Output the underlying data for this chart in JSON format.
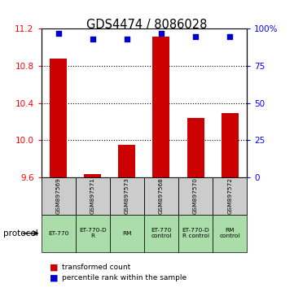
{
  "title": "GDS4474 / 8086028",
  "samples": [
    "GSM897569",
    "GSM897571",
    "GSM897573",
    "GSM897568",
    "GSM897570",
    "GSM897572"
  ],
  "bar_values": [
    10.88,
    9.63,
    9.95,
    11.12,
    10.24,
    10.29
  ],
  "dot_values": [
    97,
    93,
    93,
    97,
    95,
    95
  ],
  "ylim_left": [
    9.6,
    11.2
  ],
  "ylim_right": [
    0,
    100
  ],
  "yticks_left": [
    9.6,
    10.0,
    10.4,
    10.8,
    11.2
  ],
  "yticks_right": [
    0,
    25,
    50,
    75,
    100
  ],
  "ytick_labels_right": [
    "0",
    "25",
    "50",
    "75",
    "100%"
  ],
  "bar_color": "#cc0000",
  "dot_color": "#0000cc",
  "bar_bottom": 9.6,
  "protocols": [
    "ET-770",
    "ET-770-D\nR",
    "RM",
    "ET-770\ncontrol",
    "ET-770-D\nR control",
    "RM\ncontrol"
  ],
  "protocol_label": "protocol",
  "legend_bar_label": "transformed count",
  "legend_dot_label": "percentile rank within the sample",
  "grid_yticks": [
    10.0,
    10.4,
    10.8
  ],
  "sample_box_color": "#cccccc",
  "protocol_box_color": "#aaddaa",
  "bar_width": 0.5
}
